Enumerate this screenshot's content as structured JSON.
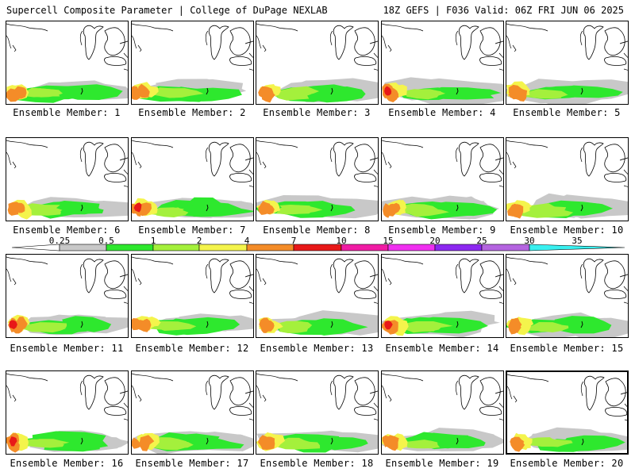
{
  "header": {
    "title": "Supercell Composite Parameter | College of DuPage NEXLAB",
    "valid": "18Z GEFS | F036 Valid: 06Z FRI JUN 06 2025"
  },
  "colorbar": {
    "ticks": [
      "0.25",
      "0.5",
      "1",
      "2",
      "4",
      "7",
      "10",
      "15",
      "20",
      "25",
      "30",
      "35"
    ],
    "colors": [
      "#c8c8c8",
      "#2ee82e",
      "#a4f03c",
      "#f4f44c",
      "#f48c28",
      "#e81818",
      "#f01ca4",
      "#f030f0",
      "#8c28f0",
      "#b464e0",
      "#38f0f0"
    ]
  },
  "panels": [
    {
      "label": "Ensemble Member: 1"
    },
    {
      "label": "Ensemble Member: 2"
    },
    {
      "label": "Ensemble Member: 3"
    },
    {
      "label": "Ensemble Member: 4"
    },
    {
      "label": "Ensemble Member: 5"
    },
    {
      "label": "Ensemble Member: 6"
    },
    {
      "label": "Ensemble Member: 7"
    },
    {
      "label": "Ensemble Member: 8"
    },
    {
      "label": "Ensemble Member: 9"
    },
    {
      "label": "Ensemble Member: 10"
    },
    {
      "label": "Ensemble Member: 11"
    },
    {
      "label": "Ensemble Member: 12"
    },
    {
      "label": "Ensemble Member: 13"
    },
    {
      "label": "Ensemble Member: 14"
    },
    {
      "label": "Ensemble Member: 15"
    },
    {
      "label": "Ensemble Member: 16"
    },
    {
      "label": "Ensemble Member: 17"
    },
    {
      "label": "Ensemble Member: 18"
    },
    {
      "label": "Ensemble Member: 19"
    },
    {
      "label": "Ensemble Member: 20"
    }
  ]
}
